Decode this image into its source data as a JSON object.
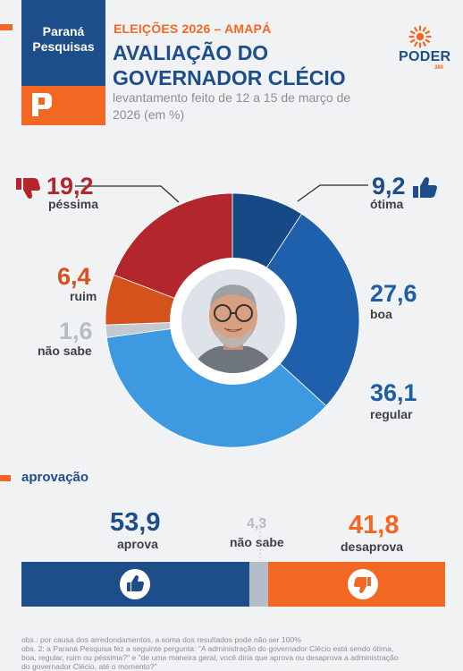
{
  "brand": {
    "line1": "Paraná",
    "line2": "Pesquisas",
    "logo_letter_icon": "p-logo-icon"
  },
  "header": {
    "kicker": "ELEIÇÕES 2026 – AMAPÁ",
    "title_line1": "AVALIAÇÃO DO",
    "title_line2": "GOVERNADOR CLÉCIO",
    "subtitle": "levantamento feito de 12 a 15 de março de 2026 (em %)"
  },
  "publisher": {
    "name": "PODER",
    "suffix": "360"
  },
  "labels": {
    "pessima": {
      "value": "19,2",
      "label": "péssima"
    },
    "otima": {
      "value": "9,2",
      "label": "ótima"
    },
    "ruim": {
      "value": "6,4",
      "label": "ruim"
    },
    "boa": {
      "value": "27,6",
      "label": "boa"
    },
    "nao_sabe": {
      "value": "1,6",
      "label": "não sabe"
    },
    "regular": {
      "value": "36,1",
      "label": "regular"
    }
  },
  "approval": {
    "title": "aprovação",
    "aprova": {
      "value": "53,9",
      "label": "aprova"
    },
    "nao_sabe": {
      "value": "4,3",
      "label": "não sabe"
    },
    "desaprova": {
      "value": "41,8",
      "label": "desaprova"
    }
  },
  "footnote": {
    "line1": "obs.: por causa dos arredondamentos, a soma dos resultados pode não ser 100%",
    "line2": "obs. 2: a Paraná Pesquisa fez a seguinte pergunta: \"A administração do governador Clécio está sendo ótima,",
    "line3": "boa, regular, ruim ou péssima?\" e \"de uma maneira geral, você diria que aprova ou desaprova a administração",
    "line4": "do governador Clécio, até o momento?\""
  },
  "colors": {
    "otima": "#164a86",
    "boa": "#1f60ad",
    "regular": "#3d9ae0",
    "nao_sabe": "#c3c9d0",
    "ruim": "#d4521c",
    "pessima": "#b3262d",
    "aprova": "#1d4e89",
    "approval_nao_sabe": "#b5bec8",
    "desaprova": "#f26722"
  },
  "chart_data": [
    {
      "type": "pie",
      "categories": [
        "ótima",
        "boa",
        "regular",
        "não sabe",
        "ruim",
        "péssima"
      ],
      "values": [
        9.2,
        27.6,
        36.1,
        1.6,
        6.4,
        19.2
      ]
    },
    {
      "type": "bar",
      "title": "aprovação",
      "categories": [
        "aprova",
        "não sabe",
        "desaprova"
      ],
      "values": [
        53.9,
        4.3,
        41.8
      ]
    }
  ]
}
